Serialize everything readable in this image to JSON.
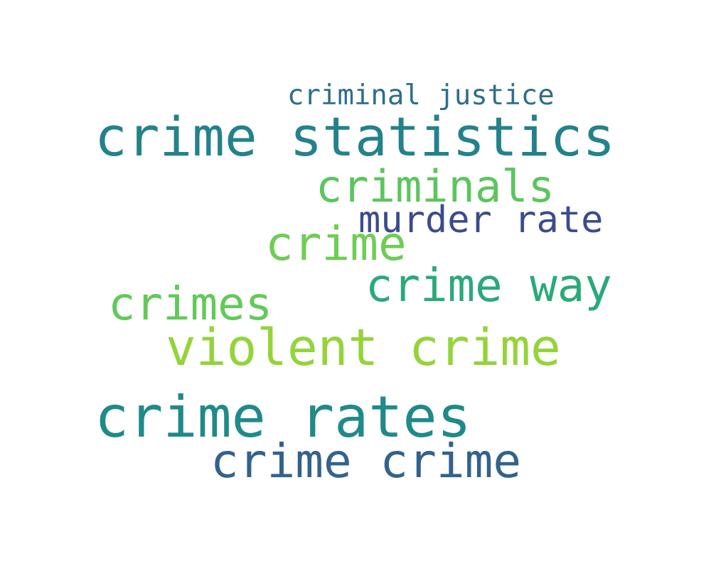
{
  "words": [
    {
      "text": "criminal justice",
      "color": "#2f6e8a"
    },
    {
      "text": "crime statistics",
      "color": "#23828a"
    },
    {
      "text": "criminals",
      "color": "#5cc55e"
    },
    {
      "text": "murder rate",
      "color": "#3c4b8c"
    },
    {
      "text": "crime",
      "color": "#6fcc55"
    },
    {
      "text": "crime way",
      "color": "#2aa97a"
    },
    {
      "text": "crimes",
      "color": "#62c95a"
    },
    {
      "text": "violent crime",
      "color": "#94d43a"
    },
    {
      "text": "crime rates",
      "color": "#1f8a89"
    },
    {
      "text": "crime crime",
      "color": "#33628d"
    }
  ]
}
